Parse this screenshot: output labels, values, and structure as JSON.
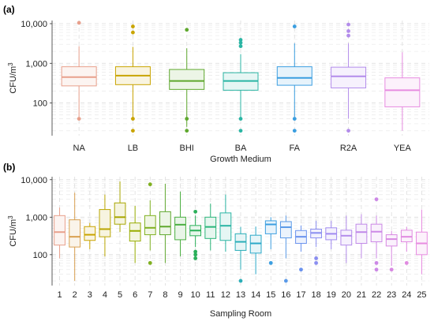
{
  "chart_data": [
    {
      "panel_label": "(a)",
      "type": "box",
      "xlabel": "Growth Medium",
      "ylabel_base": "CFU/m",
      "ylabel_sup": "3",
      "yscale": "log",
      "ylim": [
        15,
        12000
      ],
      "yticks": [
        100,
        1000,
        10000
      ],
      "ytick_labels": [
        "100",
        "1,000",
        "10,000"
      ],
      "grid": true,
      "categories": [
        "NA",
        "LB",
        "BHI",
        "BA",
        "FA",
        "R2A",
        "YEA"
      ],
      "colors": [
        "#E8A08C",
        "#C9A400",
        "#5FA82E",
        "#2BB5A4",
        "#3B9EE0",
        "#B38CEB",
        "#E78BE0"
      ],
      "stats": [
        {
          "whisker_low": 45,
          "q1": 270,
          "median": 450,
          "q3": 820,
          "whisker_high": 2700,
          "outliers": [
            40,
            10500
          ]
        },
        {
          "whisker_low": 40,
          "q1": 290,
          "median": 490,
          "q3": 820,
          "whisker_high": 2600,
          "outliers": [
            20,
            40,
            6000,
            8500
          ]
        },
        {
          "whisker_low": 25,
          "q1": 220,
          "median": 360,
          "q3": 700,
          "whisker_high": 2400,
          "outliers": [
            20,
            40,
            7000
          ]
        },
        {
          "whisker_low": 40,
          "q1": 210,
          "median": 360,
          "q3": 580,
          "whisker_high": 1700,
          "outliers": [
            20,
            40,
            2700,
            3300,
            3900
          ]
        },
        {
          "whisker_low": 45,
          "q1": 280,
          "median": 430,
          "q3": 820,
          "whisker_high": 3200,
          "outliers": [
            20,
            40,
            8500
          ]
        },
        {
          "whisker_low": 40,
          "q1": 240,
          "median": 470,
          "q3": 800,
          "whisker_high": 3200,
          "outliers": [
            20,
            5000,
            6500,
            9500
          ]
        },
        {
          "whisker_low": 20,
          "q1": 80,
          "median": 210,
          "q3": 430,
          "whisker_high": 1900,
          "outliers": []
        }
      ]
    },
    {
      "panel_label": "(b)",
      "type": "box",
      "xlabel": "Sampling Room",
      "ylabel_base": "CFU/m",
      "ylabel_sup": "3",
      "yscale": "log",
      "ylim": [
        15,
        12000
      ],
      "yticks": [
        100,
        1000,
        10000
      ],
      "ytick_labels": [
        "100",
        "1,000",
        "10,000"
      ],
      "grid": true,
      "categories": [
        "1",
        "2",
        "3",
        "4",
        "5",
        "6",
        "7",
        "8",
        "9",
        "10",
        "11",
        "12",
        "13",
        "14",
        "15",
        "16",
        "17",
        "18",
        "19",
        "20",
        "21",
        "22",
        "23",
        "24",
        "25"
      ],
      "colors": [
        "#E8A08C",
        "#D9A050",
        "#C9A400",
        "#BAA600",
        "#A8A600",
        "#97AC00",
        "#7FB020",
        "#5FA82E",
        "#4AAE40",
        "#2BB05A",
        "#2BB57A",
        "#2BB5A4",
        "#2BAEB8",
        "#2BA8C8",
        "#3B9EE0",
        "#5A9AE8",
        "#6A92EE",
        "#8A8EF0",
        "#A08AF0",
        "#B38CEB",
        "#C08AE8",
        "#CC88E6",
        "#D888E2",
        "#E08AE0",
        "#E78BE0"
      ],
      "stats": [
        {
          "whisker_low": 80,
          "q1": 180,
          "median": 400,
          "q3": 1100,
          "whisker_high": 1800,
          "outliers": []
        },
        {
          "whisker_low": 20,
          "q1": 160,
          "median": 300,
          "q3": 850,
          "whisker_high": 4500,
          "outliers": []
        },
        {
          "whisker_low": 140,
          "q1": 240,
          "median": 340,
          "q3": 560,
          "whisker_high": 700,
          "outliers": []
        },
        {
          "whisker_low": 90,
          "q1": 300,
          "median": 480,
          "q3": 1600,
          "whisker_high": 4000,
          "outliers": []
        },
        {
          "whisker_low": 400,
          "q1": 650,
          "median": 1000,
          "q3": 2400,
          "whisker_high": 9000,
          "outliers": []
        },
        {
          "whisker_low": 60,
          "q1": 230,
          "median": 430,
          "q3": 700,
          "whisker_high": 2000,
          "outliers": []
        },
        {
          "whisker_low": 130,
          "q1": 340,
          "median": 520,
          "q3": 1100,
          "whisker_high": 2800,
          "outliers": [
            60,
            7500
          ]
        },
        {
          "whisker_low": 60,
          "q1": 340,
          "median": 560,
          "q3": 1400,
          "whisker_high": 7800,
          "outliers": []
        },
        {
          "whisker_low": 90,
          "q1": 250,
          "median": 630,
          "q3": 1000,
          "whisker_high": 4800,
          "outliers": []
        },
        {
          "whisker_low": 160,
          "q1": 320,
          "median": 440,
          "q3": 600,
          "whisker_high": 1100,
          "outliers": [
            80,
            100,
            120,
            1400
          ]
        },
        {
          "whisker_low": 130,
          "q1": 270,
          "median": 550,
          "q3": 1000,
          "whisker_high": 2300,
          "outliers": []
        },
        {
          "whisker_low": 120,
          "q1": 240,
          "median": 590,
          "q3": 1300,
          "whisker_high": 4000,
          "outliers": []
        },
        {
          "whisker_low": 40,
          "q1": 130,
          "median": 220,
          "q3": 360,
          "whisker_high": 550,
          "outliers": [
            20
          ]
        },
        {
          "whisker_low": 30,
          "q1": 110,
          "median": 200,
          "q3": 330,
          "whisker_high": 560,
          "outliers": []
        },
        {
          "whisker_low": 140,
          "q1": 360,
          "median": 640,
          "q3": 800,
          "whisker_high": 1000,
          "outliers": [
            60
          ]
        },
        {
          "whisker_low": 80,
          "q1": 280,
          "median": 540,
          "q3": 760,
          "whisker_high": 1100,
          "outliers": [
            20
          ]
        },
        {
          "whisker_low": 120,
          "q1": 200,
          "median": 300,
          "q3": 440,
          "whisker_high": 600,
          "outliers": [
            40
          ]
        },
        {
          "whisker_low": 160,
          "q1": 280,
          "median": 380,
          "q3": 480,
          "whisker_high": 800,
          "outliers": [
            60,
            80
          ]
        },
        {
          "whisker_low": 140,
          "q1": 250,
          "median": 360,
          "q3": 520,
          "whisker_high": 800,
          "outliers": []
        },
        {
          "whisker_low": 60,
          "q1": 180,
          "median": 320,
          "q3": 450,
          "whisker_high": 1100,
          "outliers": []
        },
        {
          "whisker_low": 80,
          "q1": 200,
          "median": 400,
          "q3": 650,
          "whisker_high": 1200,
          "outliers": []
        },
        {
          "whisker_low": 80,
          "q1": 220,
          "median": 410,
          "q3": 650,
          "whisker_high": 1100,
          "outliers": [
            40,
            60,
            3000
          ]
        },
        {
          "whisker_low": 50,
          "q1": 170,
          "median": 260,
          "q3": 340,
          "whisker_high": 430,
          "outliers": [
            40
          ]
        },
        {
          "whisker_low": 120,
          "q1": 220,
          "median": 300,
          "q3": 450,
          "whisker_high": 550,
          "outliers": [
            60
          ]
        },
        {
          "whisker_low": 30,
          "q1": 100,
          "median": 200,
          "q3": 400,
          "whisker_high": 1600,
          "outliers": []
        }
      ]
    }
  ]
}
